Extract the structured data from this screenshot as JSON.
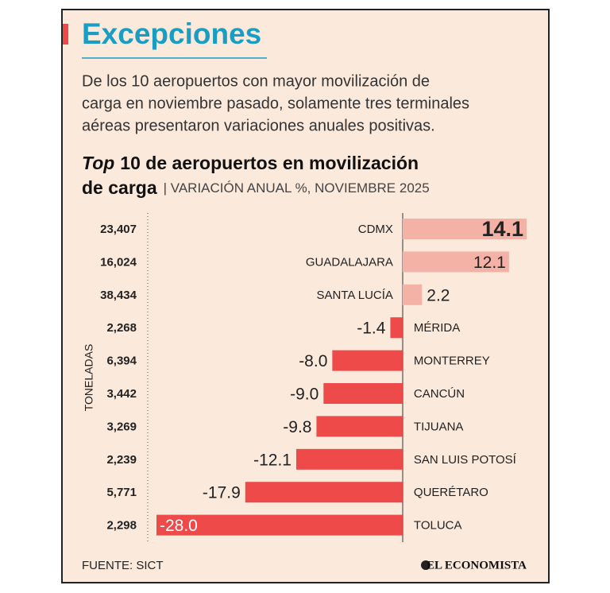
{
  "chart_data": {
    "type": "hbar",
    "heading": "Excepciones",
    "intro": [
      "De los 10 aeropuertos con mayor movilización de",
      "carga en noviembre pasado, solamente tres terminales",
      "aéreas presentaron variaciones anuales positivas."
    ],
    "title_italic": "Top",
    "title_line1": "10 de aeropuertos en movilización",
    "title_line2": "de carga",
    "subtitle": "| VARIACIÓN ANUAL %, NOVIEMBRE 2025",
    "side_label": "TONELADAS",
    "categories": [
      "CDMX",
      "GUADALAJARA",
      "SANTA LUCÍA",
      "MÉRIDA",
      "MONTERREY",
      "CANCÚN",
      "TIJUANA",
      "SAN LUIS POTOSÍ",
      "QUERÉTARO",
      "TOLUCA"
    ],
    "tonnes": [
      "23,407",
      "16,024",
      "38,434",
      "2,268",
      "6,394",
      "3,442",
      "3,269",
      "2,239",
      "5,771",
      "2,298"
    ],
    "values": [
      14.1,
      12.1,
      2.2,
      -1.4,
      -8.0,
      -9.0,
      -9.8,
      -12.1,
      -17.9,
      -28.0
    ],
    "value_labels": [
      "14.1",
      "12.1",
      "2.2",
      "-1.4",
      "-8.0",
      "-9.0",
      "-9.8",
      "-12.1",
      "-17.9",
      "-28.0"
    ],
    "positive_color": "#f4b1a6",
    "negative_color": "#ee4a49",
    "xlim": [
      -28.0,
      14.1
    ],
    "source": "FUENTE: SICT",
    "brand": "EL ECONOMISTA"
  }
}
